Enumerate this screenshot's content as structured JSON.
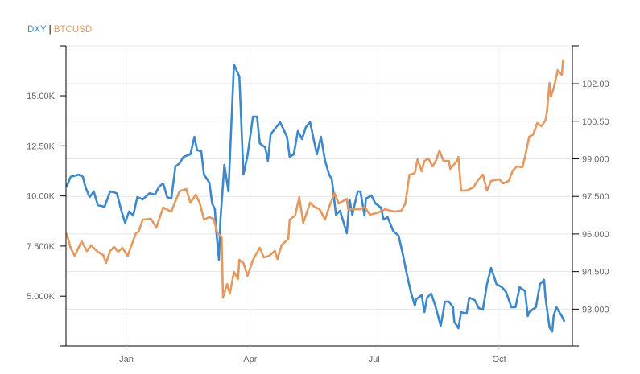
{
  "legend": {
    "series_a": "DXY",
    "separator": "|",
    "series_b": "BTCUSD"
  },
  "colors": {
    "dxy": "#3d88cb",
    "btc": "#e3995f",
    "grid": "#e6e6e6",
    "axis": "#000000"
  },
  "chart_data": {
    "type": "line",
    "title": "",
    "x_unit": "days since 2020-01-01",
    "xlim": [
      -44.4,
      326
    ],
    "x_ticks": [
      {
        "label": "Jan",
        "value": 0
      },
      {
        "label": "Apr",
        "value": 91
      },
      {
        "label": "Jul",
        "value": 182
      },
      {
        "label": "Oct",
        "value": 274
      }
    ],
    "left_axis": {
      "series": "BTCUSD",
      "ylim": [
        2520,
        17490
      ],
      "ticks": [
        {
          "label": "5.000K",
          "value": 5000
        },
        {
          "label": "7.500K",
          "value": 7500
        },
        {
          "label": "10.00K",
          "value": 10000
        },
        {
          "label": "12.50K",
          "value": 12500
        },
        {
          "label": "15.00K",
          "value": 15000
        }
      ]
    },
    "right_axis": {
      "series": "DXY",
      "ylim": [
        91.535,
        103.51
      ],
      "ticks": [
        {
          "label": "93.000",
          "value": 93
        },
        {
          "label": "94.500",
          "value": 94.5
        },
        {
          "label": "96.000",
          "value": 96
        },
        {
          "label": "97.500",
          "value": 97.5
        },
        {
          "label": "99.000",
          "value": 99
        },
        {
          "label": "100.50",
          "value": 100.5
        },
        {
          "label": "102.00",
          "value": 102
        }
      ]
    },
    "grid": true,
    "legend_position": "top-left",
    "series": [
      {
        "name": "DXY",
        "axis": "right",
        "x": [
          -44,
          -41,
          -35,
          -32,
          -30,
          -27,
          -24,
          -21,
          -16,
          -12,
          -7,
          -4,
          -1,
          2,
          5,
          8,
          12,
          17,
          21,
          24,
          27,
          30,
          33,
          36,
          39,
          42,
          47,
          50,
          52,
          55,
          57,
          61,
          63,
          65,
          66,
          68,
          69,
          72,
          75,
          79,
          83,
          86,
          89,
          93,
          96,
          98,
          102,
          104,
          106,
          113,
          118,
          120,
          123,
          126,
          129,
          132,
          135,
          140,
          143,
          146,
          149,
          151,
          154,
          157,
          162,
          164,
          166,
          170,
          172,
          175,
          176,
          180,
          183,
          187,
          189,
          192,
          196,
          200,
          203,
          206,
          209,
          212,
          213,
          217,
          219,
          221,
          224,
          227,
          231,
          233,
          234,
          237,
          240,
          241,
          244,
          246,
          250,
          252,
          256,
          259,
          262,
          265,
          268,
          272,
          276,
          279,
          283,
          286,
          289,
          293,
          295,
          296,
          301,
          304,
          307,
          308,
          311,
          313,
          314,
          316,
          320,
          322
        ],
        "values": [
          97.89,
          98.28,
          98.37,
          98.28,
          97.86,
          97.47,
          97.7,
          97.15,
          97.09,
          97.7,
          97.63,
          96.99,
          96.45,
          96.9,
          96.74,
          97.47,
          97.38,
          97.63,
          97.57,
          97.89,
          98.02,
          97.47,
          97.41,
          98.69,
          98.82,
          99.08,
          99.18,
          99.88,
          99.34,
          99.3,
          98.37,
          98.05,
          97.22,
          96.99,
          96.13,
          94.97,
          96.51,
          98.76,
          97.7,
          102.77,
          102.29,
          98.37,
          99.14,
          100.68,
          100.68,
          99.62,
          99.46,
          98.92,
          99.98,
          100.46,
          99.88,
          99.08,
          99.18,
          100.11,
          99.79,
          100.27,
          100.46,
          99.18,
          99.88,
          98.92,
          98.37,
          98.18,
          96.77,
          96.93,
          96.03,
          97.38,
          96.77,
          97.7,
          97.7,
          96.74,
          97.41,
          97.54,
          97.22,
          97.06,
          96.58,
          96.67,
          96.13,
          95.93,
          95.23,
          94.42,
          93.69,
          93.14,
          93.4,
          93.56,
          92.88,
          93.46,
          93.62,
          93.14,
          92.34,
          92.92,
          93.3,
          93.3,
          93.08,
          92.5,
          92.24,
          92.88,
          92.82,
          93.46,
          93.36,
          93.04,
          92.98,
          94.0,
          94.65,
          94.0,
          93.88,
          93.69,
          93.08,
          93.08,
          93.88,
          93.72,
          92.72,
          92.88,
          93.08,
          94.0,
          94.17,
          93.46,
          92.27,
          92.11,
          92.72,
          93.08,
          92.72,
          92.5
        ]
      },
      {
        "name": "BTCUSD",
        "axis": "left",
        "x": [
          -44,
          -41,
          -38,
          -33,
          -29,
          -26,
          -21,
          -17,
          -15,
          -12,
          -9,
          -6,
          -3,
          1,
          3,
          7,
          9,
          12,
          18,
          22,
          27,
          33,
          36,
          39,
          44,
          47,
          51,
          54,
          57,
          61,
          64,
          67,
          70,
          71,
          74,
          76,
          79,
          82,
          83,
          86,
          89,
          91,
          93,
          98,
          101,
          105,
          109,
          111,
          114,
          119,
          120,
          124,
          127,
          130,
          135,
          138,
          142,
          146,
          149,
          153,
          156,
          162,
          163,
          172,
          175,
          179,
          183,
          188,
          190,
          197,
          202,
          205,
          208,
          209,
          212,
          214,
          217,
          219,
          222,
          225,
          228,
          230,
          233,
          237,
          238,
          243,
          244,
          246,
          250,
          255,
          258,
          262,
          265,
          268,
          274,
          277,
          281,
          284,
          287,
          291,
          293,
          296,
          299,
          302,
          305,
          308,
          309,
          311,
          312,
          314,
          317,
          320,
          321,
          322
        ],
        "values": [
          8140,
          7415,
          7010,
          7740,
          7250,
          7540,
          7210,
          7050,
          6650,
          7255,
          7455,
          7215,
          7415,
          7010,
          7415,
          8140,
          8220,
          8820,
          8860,
          8420,
          9420,
          9220,
          9740,
          10230,
          10345,
          9660,
          10060,
          9620,
          8820,
          8940,
          8860,
          8140,
          7940,
          4930,
          5610,
          5130,
          6210,
          5850,
          6810,
          6650,
          6010,
          6410,
          6810,
          7415,
          6930,
          7010,
          7255,
          6850,
          7540,
          7860,
          8820,
          9020,
          9940,
          8660,
          9663,
          9460,
          9340,
          8820,
          9460,
          10140,
          9620,
          9860,
          9340,
          9340,
          9460,
          9060,
          9140,
          9260,
          9340,
          9220,
          9260,
          9620,
          11070,
          11070,
          11150,
          11830,
          11230,
          11750,
          11870,
          11470,
          11830,
          12270,
          11750,
          11750,
          11350,
          11750,
          11950,
          10270,
          10270,
          10430,
          10750,
          11070,
          10270,
          10750,
          10830,
          10630,
          10750,
          11270,
          11470,
          11430,
          11950,
          12950,
          13070,
          13640,
          13480,
          13760,
          14160,
          15640,
          14960,
          15360,
          16280,
          16040,
          16770,
          16770
        ]
      }
    ]
  }
}
